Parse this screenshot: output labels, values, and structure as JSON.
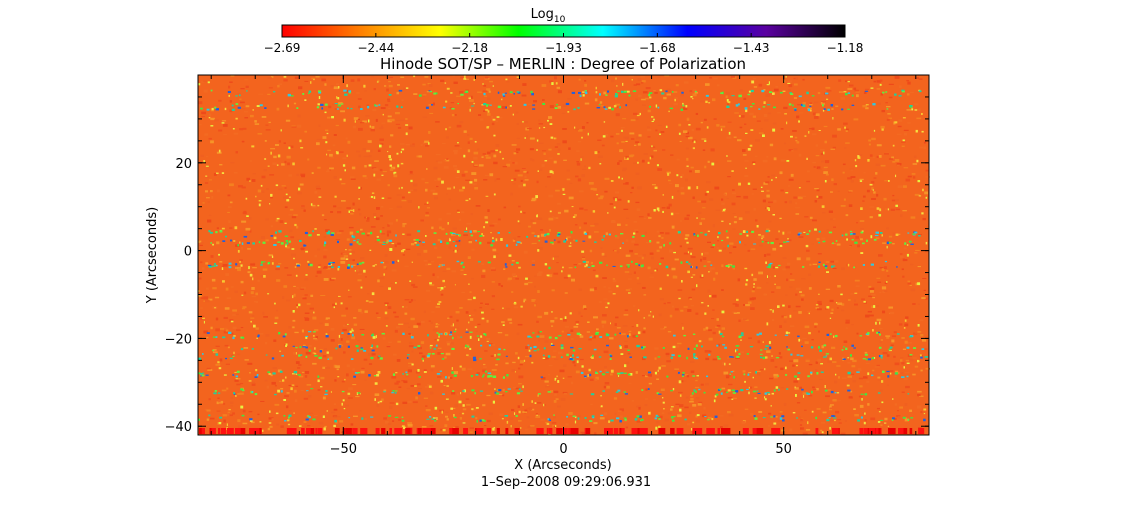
{
  "chart_data": {
    "type": "heatmap",
    "title": "Hinode SOT/SP – MERLIN : Degree of Polarization",
    "xlabel": "X (Arcseconds)",
    "ylabel": "Y (Arcseconds)",
    "footer": "1–Sep–2008 09:29:06.931",
    "xlim": [
      -83,
      83
    ],
    "ylim": [
      -42,
      40
    ],
    "xticks": [
      {
        "value": -50,
        "label": "−50"
      },
      {
        "value": 0,
        "label": "0"
      },
      {
        "value": 50,
        "label": "50"
      }
    ],
    "yticks": [
      {
        "value": 20,
        "label": "20"
      },
      {
        "value": 0,
        "label": "0"
      },
      {
        "value": -20,
        "label": "−20"
      },
      {
        "value": -40,
        "label": "−40"
      }
    ],
    "colorbar": {
      "label_base": "Log",
      "label_sub": "10",
      "min": -2.69,
      "max": -1.18,
      "ticks": [
        "−2.69",
        "−2.44",
        "−2.18",
        "−1.93",
        "−1.68",
        "−1.43",
        "−1.18"
      ],
      "colors": [
        "#ff0000",
        "#ff8000",
        "#ffff00",
        "#00ff00",
        "#00ffff",
        "#0000ff",
        "#5a00a0",
        "#000000"
      ]
    },
    "dominant_value_range": [
      -2.69,
      -2.44
    ],
    "features": [
      {
        "description": "horizontal streaks of higher polarization (green/cyan/blue)",
        "y": 36
      },
      {
        "y": 33
      },
      {
        "y": 4
      },
      {
        "y": 2
      },
      {
        "y": -3
      },
      {
        "y": -19
      },
      {
        "y": -22
      },
      {
        "y": -24
      },
      {
        "y": -28
      },
      {
        "y": -32
      },
      {
        "y": -38
      }
    ]
  }
}
